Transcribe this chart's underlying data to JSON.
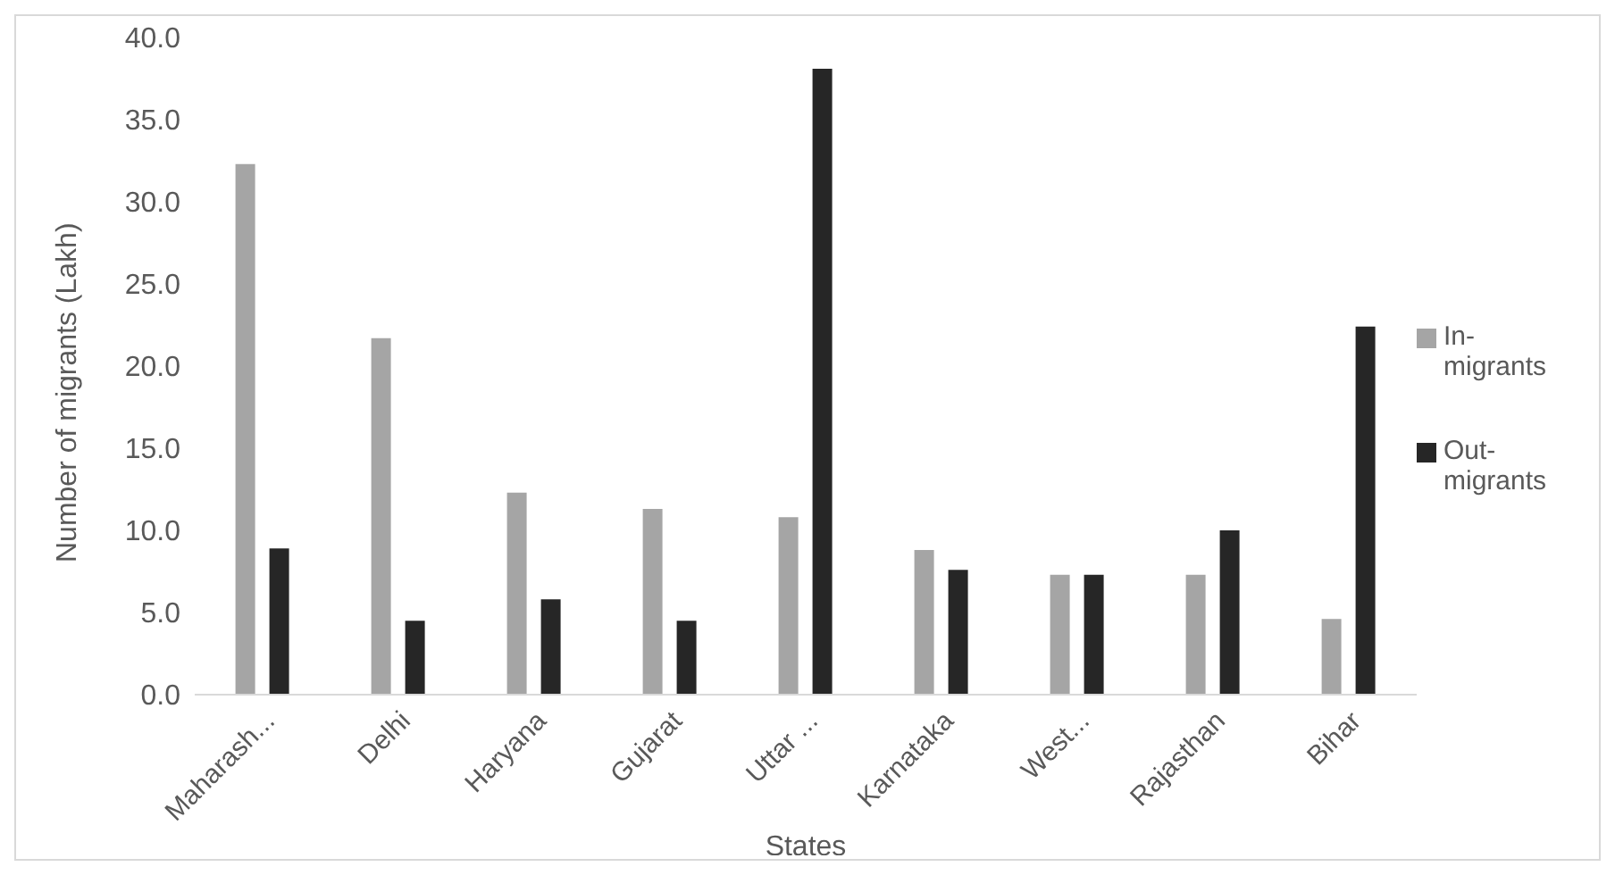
{
  "chart_data": {
    "type": "bar",
    "xlabel": "States",
    "ylabel": "Number of migrants (Lakh)",
    "categories": [
      "Maharash...",
      "Delhi",
      "Haryana",
      "Gujarat",
      "Uttar ...",
      "Karnataka",
      "West...",
      "Rajasthan",
      "Bihar"
    ],
    "series": [
      {
        "name": "In-migrants",
        "color": "#a5a5a5",
        "values": [
          32.3,
          21.7,
          12.3,
          11.3,
          10.8,
          8.8,
          7.3,
          7.3,
          4.6
        ]
      },
      {
        "name": "Out-migrants",
        "color": "#262626",
        "values": [
          8.9,
          4.5,
          5.8,
          4.5,
          38.1,
          7.6,
          7.3,
          10.0,
          22.4
        ]
      }
    ],
    "ylim": [
      0,
      40
    ],
    "yticks": [
      {
        "value": 0,
        "label": "0.0"
      },
      {
        "value": 5,
        "label": "5.0"
      },
      {
        "value": 10,
        "label": "10.0"
      },
      {
        "value": 15,
        "label": "15.0"
      },
      {
        "value": 20,
        "label": "20.0"
      },
      {
        "value": 25,
        "label": "25.0"
      },
      {
        "value": 30,
        "label": "30.0"
      },
      {
        "value": 35,
        "label": "35.0"
      },
      {
        "value": 40,
        "label": "40.0"
      }
    ],
    "grid": false,
    "legend": "right"
  }
}
